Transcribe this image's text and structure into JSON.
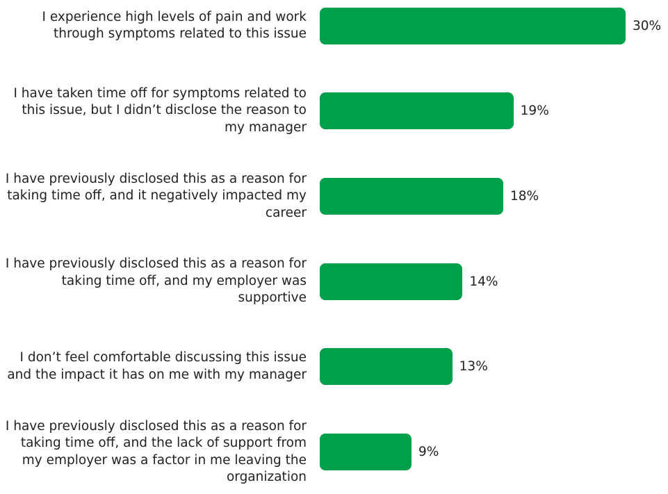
{
  "chart_data": {
    "type": "bar",
    "orientation": "horizontal",
    "categories": [
      "I experience high levels of pain and work through symptoms related to this issue",
      "I have taken time off for symptoms related to this issue, but I didn’t disclose the reason to my manager",
      "I have previously disclosed this as a reason for taking time off, and it negatively impacted my career",
      "I have previously disclosed this as a reason for taking time off, and my employer was supportive",
      "I don’t feel comfortable discussing this issue and the impact it has on me with my manager",
      "I have previously disclosed this as a reason for taking time off, and the lack of support from my employer was a factor in me leaving the organization"
    ],
    "values": [
      30,
      19,
      18,
      14,
      13,
      9
    ],
    "value_labels": [
      "30%",
      "19%",
      "18%",
      "14%",
      "13%",
      "9%"
    ],
    "color": "#00a04b"
  }
}
